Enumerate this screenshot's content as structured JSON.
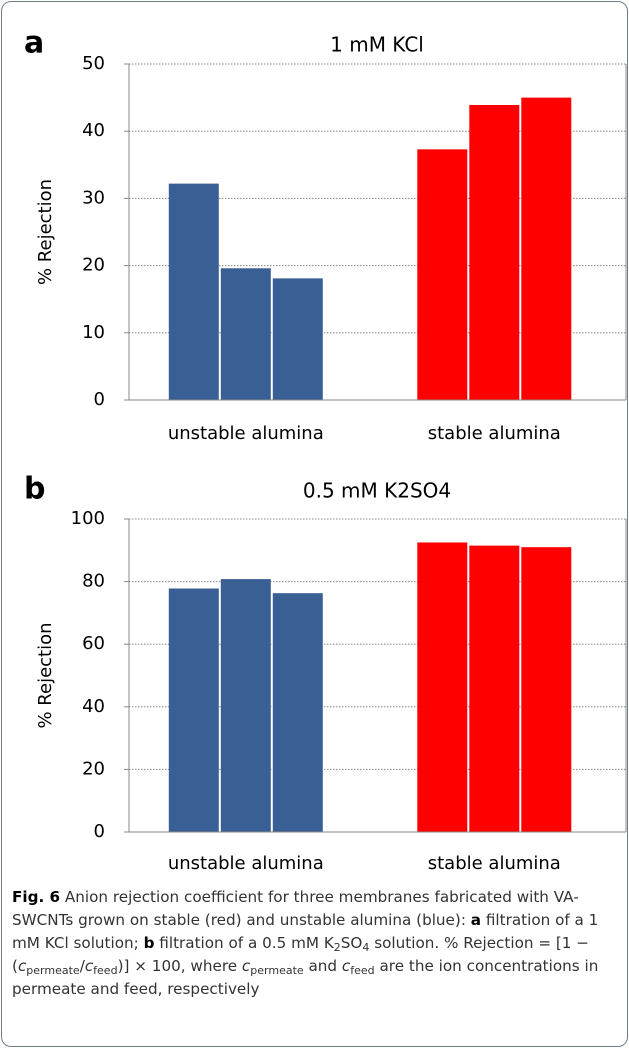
{
  "chart_data": [
    {
      "type": "bar",
      "panel": "a",
      "title": "1 mM KCl",
      "ylabel": "% Rejection",
      "categories": [
        "unstable alumina",
        "stable alumina"
      ],
      "values": [
        [
          32.2,
          19.6,
          18.1
        ],
        [
          37.3,
          43.9,
          45.0
        ]
      ],
      "colors": [
        "#3a5f94",
        "#ff0000"
      ],
      "ylim": [
        0,
        50
      ],
      "yticks": [
        0,
        10,
        20,
        30,
        40,
        50
      ],
      "grid": true
    },
    {
      "type": "bar",
      "panel": "b",
      "title": "0.5 mM K2SO4",
      "ylabel": "% Rejection",
      "categories": [
        "unstable alumina",
        "stable alumina"
      ],
      "values": [
        [
          77.8,
          80.8,
          76.3
        ],
        [
          92.5,
          91.5,
          91.0
        ]
      ],
      "colors": [
        "#3a5f94",
        "#ff0000"
      ],
      "ylim": [
        0,
        100
      ],
      "yticks": [
        0,
        20,
        40,
        60,
        80,
        100
      ],
      "grid": true
    }
  ],
  "caption": {
    "parts": [
      {
        "text": "Fig. 6",
        "style": "b"
      },
      {
        "text": " Anion rejection coefficient for three membranes fabricated with VA-SWCNTs grown on stable (red) and unstable alumina (blue): ",
        "style": "n"
      },
      {
        "text": "a",
        "style": "b"
      },
      {
        "text": " filtration of a 1 mM KCl solution; ",
        "style": "n"
      },
      {
        "text": "b",
        "style": "b"
      },
      {
        "text": " filtration of a 0.5 mM K",
        "style": "n"
      },
      {
        "text": "2",
        "style": "sub"
      },
      {
        "text": "SO",
        "style": "n"
      },
      {
        "text": "4",
        "style": "sub"
      },
      {
        "text": " solution. % Rejection = [1 − (",
        "style": "n"
      },
      {
        "text": "c",
        "style": "i"
      },
      {
        "text": "permeate",
        "style": "sub"
      },
      {
        "text": "/",
        "style": "n"
      },
      {
        "text": "c",
        "style": "i"
      },
      {
        "text": "feed",
        "style": "sub"
      },
      {
        "text": ")] × 100, where ",
        "style": "n"
      },
      {
        "text": "c",
        "style": "i"
      },
      {
        "text": "permeate",
        "style": "sub"
      },
      {
        "text": " and ",
        "style": "n"
      },
      {
        "text": "c",
        "style": "i"
      },
      {
        "text": "feed",
        "style": "sub"
      },
      {
        "text": " are the ion concentrations in permeate and feed, respectively",
        "style": "n"
      }
    ]
  }
}
